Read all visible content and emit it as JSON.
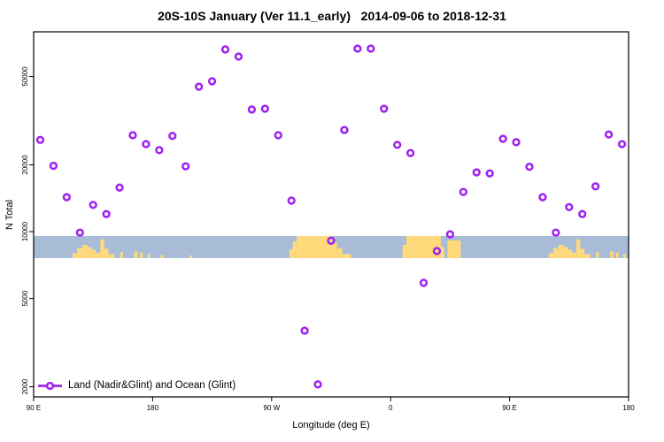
{
  "legend": {
    "label": "Land (Nadir&Glint) and Ocean (Glint)",
    "marker": "open-circle-with-line"
  },
  "colors": {
    "marker": "#A020F0",
    "ocean": "#A8BCD8",
    "land": "#FFD97A",
    "axis": "#000000",
    "background": "#FFFFFF"
  },
  "chart_data": {
    "type": "scatter",
    "title": "20S-10S January (Ver 11.1_early)   2014-09-06 to 2018-12-31",
    "xlabel": "Longitude (deg E)",
    "ylabel": "N Total",
    "legend_position": "bottom-left-inside",
    "grid": false,
    "x_axis": {
      "range_deg": [
        90,
        540
      ],
      "ticks": [
        {
          "value": 90,
          "label": "90 E"
        },
        {
          "value": 180,
          "label": "180"
        },
        {
          "value": 270,
          "label": "90 W"
        },
        {
          "value": 360,
          "label": "0"
        },
        {
          "value": 450,
          "label": "90 E"
        },
        {
          "value": 540,
          "label": "180"
        }
      ]
    },
    "y_axis": {
      "scale": "log",
      "range": [
        1800,
        79500
      ],
      "ticks": [
        {
          "value": 2000,
          "label": "2000"
        },
        {
          "value": 5000,
          "label": "5000"
        },
        {
          "value": 10000,
          "label": "10000"
        },
        {
          "value": 20000,
          "label": "20000"
        },
        {
          "value": 50000,
          "label": "50000"
        }
      ]
    },
    "series": [
      {
        "name": "Land (Nadir&Glint) and Ocean (Glint)",
        "marker": "open-circle",
        "color": "#A020F0",
        "lon": [
          95,
          105,
          115,
          125,
          135,
          145,
          155,
          165,
          175,
          185,
          195,
          205,
          215,
          225,
          235,
          245,
          255,
          265,
          275,
          285,
          295,
          305,
          315,
          325,
          335,
          345,
          355,
          365,
          375,
          385,
          395,
          405,
          415,
          425,
          435,
          445,
          455,
          465,
          475,
          485,
          495,
          505,
          515,
          525,
          535
        ],
        "n": [
          25900,
          19800,
          14300,
          9900,
          13200,
          12000,
          15800,
          27200,
          24800,
          23300,
          27000,
          19700,
          45000,
          47600,
          66200,
          61500,
          35500,
          35800,
          27200,
          13800,
          3580,
          2050,
          9100,
          28700,
          66800,
          66800,
          35800,
          24600,
          22600,
          5880,
          8180,
          9730,
          15100,
          18500,
          18300,
          26200,
          25300,
          19600,
          14300,
          9900,
          12900,
          12000,
          16000,
          27400,
          24800
        ]
      }
    ],
    "map_band": {
      "description": "world coastline strip for the 20S-10S latitude band",
      "n_top": 9560,
      "n_bottom": 7600,
      "ocean_color": "#A8BCD8",
      "land_color": "#FFD97A",
      "land_segments": [
        [
          119.5,
          123,
          0.22
        ],
        [
          123,
          127,
          0.45
        ],
        [
          127,
          131,
          0.6
        ],
        [
          131,
          134,
          0.5
        ],
        [
          134,
          137,
          0.38
        ],
        [
          137,
          140.5,
          0.25
        ],
        [
          140.5,
          143.5,
          0.85
        ],
        [
          143.5,
          146.5,
          0.42
        ],
        [
          146.5,
          151,
          0.18
        ],
        [
          155.5,
          157.5,
          0.28
        ],
        [
          166,
          168.5,
          0.3
        ],
        [
          170.5,
          172.5,
          0.25
        ],
        [
          176,
          178,
          0.18
        ],
        [
          186,
          188,
          0.14
        ],
        [
          208,
          210,
          0.12
        ],
        [
          283.5,
          286,
          0.4
        ],
        [
          286,
          289,
          0.75
        ],
        [
          289,
          315.5,
          1.0
        ],
        [
          315.5,
          319.5,
          0.72
        ],
        [
          319.5,
          323.5,
          0.45
        ],
        [
          323.5,
          330,
          0.18
        ],
        [
          369,
          372,
          0.6
        ],
        [
          372,
          398,
          1.0
        ],
        [
          398,
          400.5,
          0.5
        ],
        [
          403,
          413,
          0.8
        ],
        [
          479.5,
          483,
          0.22
        ],
        [
          483,
          487,
          0.45
        ],
        [
          487,
          491,
          0.6
        ],
        [
          491,
          494,
          0.5
        ],
        [
          494,
          497,
          0.38
        ],
        [
          497,
          500.5,
          0.25
        ],
        [
          500.5,
          503.5,
          0.85
        ],
        [
          503.5,
          506.5,
          0.42
        ],
        [
          506.5,
          511,
          0.18
        ],
        [
          515.5,
          517.5,
          0.28
        ],
        [
          526,
          528.5,
          0.3
        ],
        [
          530.5,
          532.5,
          0.25
        ],
        [
          536,
          538,
          0.18
        ]
      ]
    }
  }
}
